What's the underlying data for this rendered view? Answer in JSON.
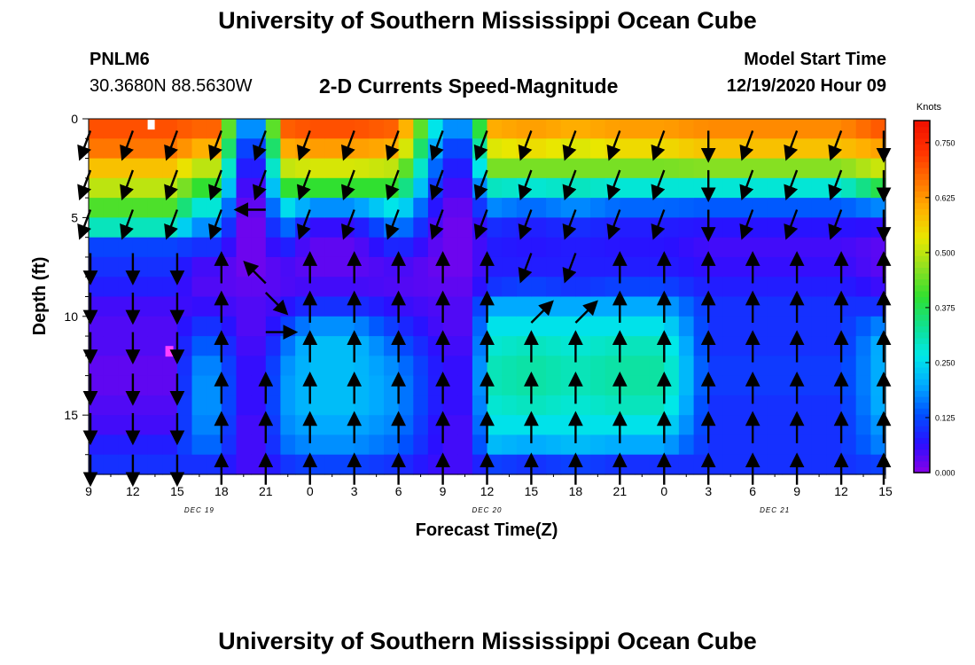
{
  "header": {
    "title": "University of Southern Mississippi Ocean Cube",
    "station_id": "PNLM6",
    "station_coords": "30.3680N 88.5630W",
    "plot_title": "2-D Currents Speed-Magnitude",
    "start_label": "Model Start Time",
    "start_value": "12/19/2020 Hour 09"
  },
  "footer": {
    "title": "University of Southern Mississippi Ocean Cube"
  },
  "chart_data": {
    "type": "heatmap",
    "xlabel": "Forecast Time(Z)",
    "ylabel": "Depth (ft)",
    "colorbar_label": "Knots",
    "x_range_hours": [
      0,
      54
    ],
    "y_range": [
      0,
      18
    ],
    "x_ticks": [
      "9",
      "12",
      "15",
      "18",
      "21",
      "0",
      "3",
      "6",
      "9",
      "12",
      "15",
      "18",
      "21",
      "0",
      "3",
      "6",
      "9",
      "12",
      "15"
    ],
    "y_ticks": [
      0,
      5,
      10,
      15
    ],
    "date_labels": [
      {
        "text": "DEC 19",
        "hour": 7.5
      },
      {
        "text": "DEC 20",
        "hour": 27
      },
      {
        "text": "DEC 21",
        "hour": 46.5
      }
    ],
    "colorbar_ticks": [
      "0.000",
      "0.125",
      "0.250",
      "0.375",
      "0.500",
      "0.625",
      "0.750"
    ],
    "colorbar_range": [
      0,
      0.8
    ],
    "depth_rows": [
      0.5,
      1.5,
      2.5,
      3.5,
      4.5,
      5.5,
      6.5,
      7.5,
      8.5,
      9.5,
      10.5,
      11.5,
      12.5,
      13.5,
      14.5,
      15.5,
      16.5,
      17.5
    ],
    "speed_profiles": {
      "A": [
        0.7,
        0.66,
        0.58,
        0.5,
        0.42,
        0.3,
        0.12,
        0.1,
        0.08,
        0.05,
        0.04,
        0.04,
        0.03,
        0.03,
        0.04,
        0.05,
        0.08,
        0.1
      ],
      "B": [
        0.68,
        0.6,
        0.5,
        0.4,
        0.28,
        0.18,
        0.1,
        0.05,
        0.04,
        0.06,
        0.1,
        0.14,
        0.17,
        0.18,
        0.18,
        0.17,
        0.15,
        0.1
      ],
      "C": [
        0.7,
        0.62,
        0.52,
        0.4,
        0.18,
        0.06,
        0.03,
        0.03,
        0.05,
        0.1,
        0.18,
        0.22,
        0.22,
        0.22,
        0.22,
        0.2,
        0.18,
        0.12
      ],
      "D": [
        0.18,
        0.12,
        0.08,
        0.05,
        0.03,
        0.02,
        0.02,
        0.02,
        0.03,
        0.04,
        0.04,
        0.05,
        0.06,
        0.06,
        0.06,
        0.05,
        0.05,
        0.05
      ],
      "E": [
        0.6,
        0.52,
        0.45,
        0.3,
        0.18,
        0.1,
        0.08,
        0.08,
        0.1,
        0.2,
        0.26,
        0.28,
        0.3,
        0.3,
        0.28,
        0.26,
        0.22,
        0.12
      ],
      "F": [
        0.62,
        0.55,
        0.45,
        0.28,
        0.15,
        0.08,
        0.07,
        0.08,
        0.12,
        0.2,
        0.26,
        0.3,
        0.32,
        0.32,
        0.3,
        0.26,
        0.2,
        0.1
      ],
      "G": [
        0.64,
        0.58,
        0.46,
        0.28,
        0.14,
        0.07,
        0.05,
        0.06,
        0.08,
        0.1,
        0.1,
        0.1,
        0.11,
        0.11,
        0.1,
        0.1,
        0.1,
        0.1
      ]
    },
    "time_profiles": [
      {
        "hour": 0,
        "profile": "A"
      },
      {
        "hour": 3,
        "profile": "A"
      },
      {
        "hour": 6,
        "profile": "A"
      },
      {
        "hour": 7,
        "profile": "B"
      },
      {
        "hour": 9,
        "profile": "B"
      },
      {
        "hour": 10,
        "profile": "D"
      },
      {
        "hour": 12,
        "profile": "D"
      },
      {
        "hour": 13,
        "profile": "B"
      },
      {
        "hour": 15,
        "profile": "C"
      },
      {
        "hour": 18,
        "profile": "C"
      },
      {
        "hour": 21,
        "profile": "B"
      },
      {
        "hour": 24,
        "profile": "D"
      },
      {
        "hour": 26,
        "profile": "D"
      },
      {
        "hour": 27,
        "profile": "E"
      },
      {
        "hour": 30,
        "profile": "F"
      },
      {
        "hour": 33,
        "profile": "E"
      },
      {
        "hour": 36,
        "profile": "F"
      },
      {
        "hour": 39,
        "profile": "F"
      },
      {
        "hour": 42,
        "profile": "G"
      },
      {
        "hour": 45,
        "profile": "G"
      },
      {
        "hour": 48,
        "profile": "G"
      },
      {
        "hour": 51,
        "profile": "G"
      },
      {
        "hour": 54,
        "profile": "C"
      }
    ],
    "vector_hours": [
      0,
      3,
      6,
      9,
      12,
      15,
      18,
      21,
      24,
      27,
      30,
      33,
      36,
      39,
      42,
      45,
      48,
      51,
      54
    ],
    "vector_depths": [
      0.6,
      2.6,
      4.6,
      6.8,
      8.8,
      10.8,
      12.9,
      14.9,
      17.0
    ],
    "direction_patterns": {
      "down": [
        "sw",
        "sw",
        "sw",
        "s",
        "s",
        "s",
        "s",
        "s",
        "s"
      ],
      "mixed": [
        "sw",
        "sw",
        "sw",
        "n",
        "n",
        "n",
        "n",
        "n",
        "n"
      ],
      "eddy": [
        "sw",
        "sw",
        "w",
        "nw",
        "se",
        "e",
        "n",
        "n",
        "n"
      ],
      "turn": [
        "sw",
        "sw",
        "sw",
        "sw",
        "ne",
        "n",
        "n",
        "n",
        "n"
      ],
      "up": [
        "s",
        "s",
        "s",
        "n",
        "n",
        "n",
        "n",
        "n",
        "n"
      ]
    },
    "vector_columns": [
      "down",
      "down",
      "down",
      "mixed",
      "eddy",
      "mixed",
      "mixed",
      "mixed",
      "mixed",
      "mixed",
      "turn",
      "turn",
      "mixed",
      "mixed",
      "up",
      "mixed",
      "mixed",
      "mixed",
      "up"
    ],
    "colors": {
      "colormap": [
        "#8a00e6",
        "#2a10ff",
        "#0050ff",
        "#00aaff",
        "#00e8e8",
        "#10e090",
        "#30e030",
        "#90e020",
        "#e8e800",
        "#ffb000",
        "#ff7000",
        "#ff3000",
        "#f01000"
      ],
      "arrow": "#000000",
      "marker_high": "#ffffff",
      "marker_low": "#ff40ff"
    }
  }
}
